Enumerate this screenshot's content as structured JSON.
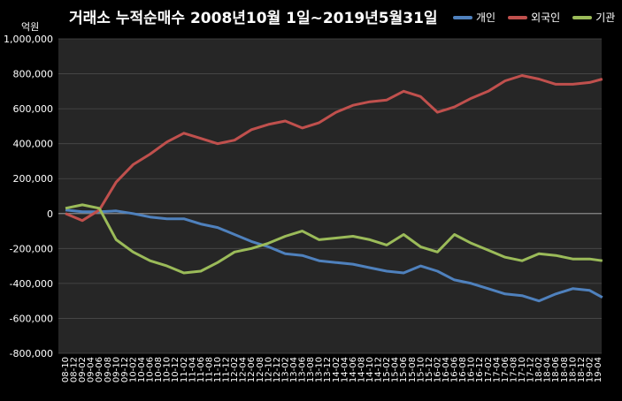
{
  "chart_data": {
    "type": "line",
    "title": "거래소  누적순매수 2008년10월 1일~2019년5월31일",
    "unit_label": "억원",
    "ylim": [
      -800000,
      1000000
    ],
    "y_ticks": [
      1000000,
      800000,
      600000,
      400000,
      200000,
      0,
      -200000,
      -400000,
      -600000,
      -800000
    ],
    "y_tick_labels": [
      "1,000,000",
      "800,000",
      "600,000",
      "400,000",
      "200,000",
      "0",
      "-200,000",
      "-400,000",
      "-600,000",
      "-800,000"
    ],
    "grid": true,
    "legend_position": "top-right",
    "x_tick_labels": [
      "08-10",
      "08-12",
      "09-02",
      "09-04",
      "09-06",
      "09-08",
      "09-10",
      "09-12",
      "10-02",
      "10-04",
      "10-06",
      "10-08",
      "10-10",
      "10-12",
      "11-02",
      "11-04",
      "11-06",
      "11-08",
      "11-10",
      "11-12",
      "12-02",
      "12-04",
      "12-06",
      "12-08",
      "12-10",
      "12-12",
      "13-02",
      "13-04",
      "13-06",
      "13-08",
      "13-10",
      "13-12",
      "14-02",
      "14-04",
      "14-06",
      "14-08",
      "14-10",
      "14-12",
      "15-02",
      "15-04",
      "15-06",
      "15-08",
      "15-10",
      "15-12",
      "16-02",
      "16-04",
      "16-06",
      "16-08",
      "16-10",
      "16-12",
      "17-02",
      "17-04",
      "17-06",
      "17-08",
      "17-10",
      "17-12",
      "18-02",
      "18-04",
      "18-06",
      "18-08",
      "18-10",
      "18-12",
      "19-02",
      "19-04"
    ],
    "x": [
      "08-10",
      "09-02",
      "09-06",
      "09-10",
      "10-02",
      "10-06",
      "10-10",
      "11-02",
      "11-06",
      "11-10",
      "12-02",
      "12-06",
      "12-10",
      "13-02",
      "13-06",
      "13-10",
      "14-02",
      "14-06",
      "14-10",
      "15-02",
      "15-06",
      "15-10",
      "16-02",
      "16-06",
      "16-10",
      "17-02",
      "17-06",
      "17-10",
      "18-02",
      "18-06",
      "18-10",
      "19-02",
      "19-05"
    ],
    "series": [
      {
        "name": "개인",
        "color": "#4f81bd",
        "values": [
          20000,
          10000,
          10000,
          15000,
          0,
          -20000,
          -30000,
          -30000,
          -60000,
          -80000,
          -120000,
          -160000,
          -190000,
          -230000,
          -240000,
          -270000,
          -280000,
          -290000,
          -310000,
          -330000,
          -340000,
          -300000,
          -330000,
          -380000,
          -400000,
          -430000,
          -460000,
          -470000,
          -500000,
          -460000,
          -430000,
          -440000,
          -480000
        ]
      },
      {
        "name": "외국인",
        "color": "#c0504d",
        "values": [
          0,
          -40000,
          20000,
          180000,
          280000,
          340000,
          410000,
          460000,
          430000,
          400000,
          420000,
          480000,
          510000,
          530000,
          490000,
          520000,
          580000,
          620000,
          640000,
          650000,
          700000,
          670000,
          580000,
          610000,
          660000,
          700000,
          760000,
          790000,
          770000,
          740000,
          740000,
          750000,
          770000
        ]
      },
      {
        "name": "기관",
        "color": "#9bbb59",
        "values": [
          30000,
          50000,
          30000,
          -150000,
          -220000,
          -270000,
          -300000,
          -340000,
          -330000,
          -280000,
          -220000,
          -200000,
          -170000,
          -130000,
          -100000,
          -150000,
          -140000,
          -130000,
          -150000,
          -180000,
          -120000,
          -190000,
          -220000,
          -120000,
          -170000,
          -210000,
          -250000,
          -270000,
          -230000,
          -240000,
          -260000,
          -260000,
          -270000
        ]
      }
    ]
  }
}
